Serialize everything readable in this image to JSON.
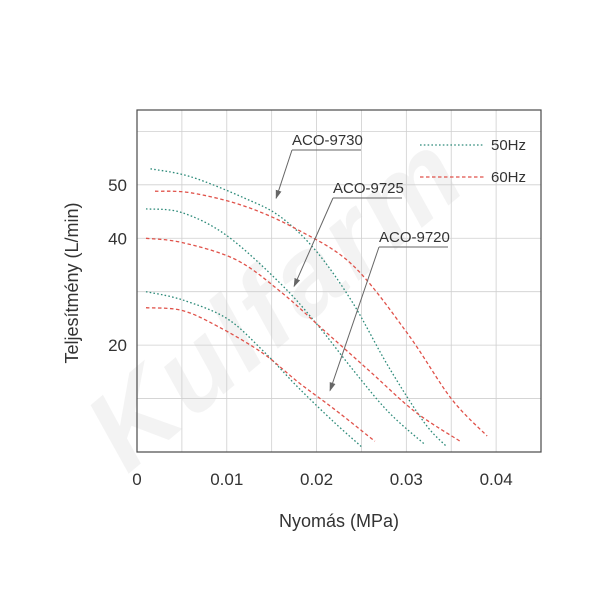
{
  "chart_data": {
    "type": "line",
    "title": "",
    "xlabel": "Nyomás (MPa)",
    "ylabel": "Teljesítmény (L/min)",
    "xlim": [
      0,
      0.045
    ],
    "ylim": [
      0,
      64
    ],
    "xticks": [
      0,
      0.01,
      0.02,
      0.03,
      0.04
    ],
    "xtick_labels": [
      "0",
      "0.01",
      "0.02",
      "0.03",
      "0.04"
    ],
    "yticks": [
      20,
      40,
      50
    ],
    "ytick_labels": [
      "20",
      "40",
      "50"
    ],
    "grid": true,
    "legend": {
      "placement": "top-right",
      "entries": [
        {
          "label": "50Hz",
          "color": "#2e8b7a"
        },
        {
          "label": "60Hz",
          "color": "#e0524a"
        }
      ]
    },
    "colors": {
      "50Hz": "#2e8b7a",
      "60Hz": "#e0524a",
      "annotation": "#666666"
    },
    "series": [
      {
        "model": "ACO-9730",
        "freq": "50Hz",
        "points": [
          [
            0.0015,
            53
          ],
          [
            0.006,
            51.5
          ],
          [
            0.012,
            47.5
          ],
          [
            0.016,
            44
          ],
          [
            0.02,
            37.5
          ],
          [
            0.024,
            28
          ],
          [
            0.028,
            16
          ],
          [
            0.032,
            5.5
          ],
          [
            0.0345,
            1
          ]
        ]
      },
      {
        "model": "ACO-9730",
        "freq": "60Hz",
        "points": [
          [
            0.002,
            48.8
          ],
          [
            0.006,
            48.5
          ],
          [
            0.012,
            46
          ],
          [
            0.018,
            41.5
          ],
          [
            0.024,
            35
          ],
          [
            0.03,
            22.5
          ],
          [
            0.035,
            10
          ],
          [
            0.039,
            3
          ]
        ]
      },
      {
        "model": "ACO-9725",
        "freq": "50Hz",
        "points": [
          [
            0.001,
            45.5
          ],
          [
            0.005,
            44.8
          ],
          [
            0.01,
            40.5
          ],
          [
            0.016,
            31.5
          ],
          [
            0.02,
            24
          ],
          [
            0.024,
            15.5
          ],
          [
            0.028,
            7.5
          ],
          [
            0.032,
            1.5
          ]
        ]
      },
      {
        "model": "ACO-9725",
        "freq": "60Hz",
        "points": [
          [
            0.001,
            40
          ],
          [
            0.005,
            39.2
          ],
          [
            0.011,
            36
          ],
          [
            0.016,
            30
          ],
          [
            0.021,
            22.5
          ],
          [
            0.026,
            15
          ],
          [
            0.031,
            7.5
          ],
          [
            0.036,
            2
          ]
        ]
      },
      {
        "model": "ACO-9720",
        "freq": "50Hz",
        "points": [
          [
            0.001,
            30
          ],
          [
            0.005,
            28.5
          ],
          [
            0.01,
            25
          ],
          [
            0.014,
            19
          ],
          [
            0.018,
            12
          ],
          [
            0.022,
            5.5
          ],
          [
            0.025,
            1
          ]
        ]
      },
      {
        "model": "ACO-9720",
        "freq": "60Hz",
        "points": [
          [
            0.001,
            27
          ],
          [
            0.005,
            26.5
          ],
          [
            0.009,
            23.5
          ],
          [
            0.014,
            18.5
          ],
          [
            0.018,
            13
          ],
          [
            0.022,
            8
          ],
          [
            0.0265,
            2
          ]
        ]
      }
    ],
    "annotations": [
      {
        "text": "ACO-9730",
        "target": [
          0.0155,
          47.5
        ]
      },
      {
        "text": "ACO-9725",
        "target": [
          0.0175,
          31
        ]
      },
      {
        "text": "ACO-9720",
        "target": [
          0.0215,
          11.5
        ]
      }
    ],
    "watermark": "Kulfarm"
  }
}
